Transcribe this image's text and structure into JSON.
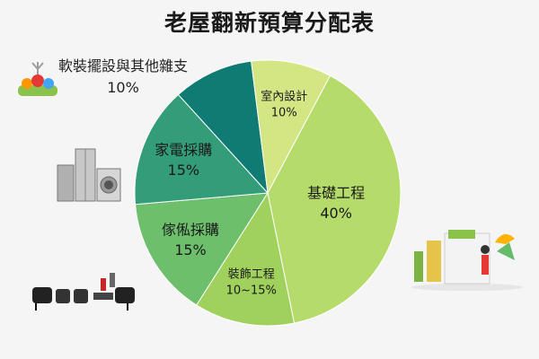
{
  "chart_data": {
    "type": "pie",
    "title": "老屋翻新預算分配表",
    "slices": [
      {
        "label": "基礎工程",
        "value_text": "40%",
        "value": 40,
        "color": "#b5dc6a",
        "text_color": "#1a1a1a"
      },
      {
        "label": "裝飾工程",
        "value_text": "10~15%",
        "value": 12.5,
        "color": "#9fd15c",
        "text_color": "#1a1a1a"
      },
      {
        "label": "傢俬採購",
        "value_text": "15%",
        "value": 15,
        "color": "#6dbf6c",
        "text_color": "#1a1a1a"
      },
      {
        "label": "家電採購",
        "value_text": "15%",
        "value": 15,
        "color": "#339c78",
        "text_color": "#1a1a1a"
      },
      {
        "label": "軟裝擺設與其他雜支",
        "value_text": "10%",
        "value": 10,
        "color": "#0f7b72",
        "text_color": "#1a1a1a"
      },
      {
        "label": "室內設計",
        "value_text": "10%",
        "value": 10,
        "color": "#d4e684",
        "text_color": "#1a1a1a"
      }
    ]
  },
  "decorations": [
    {
      "name": "soft-furnishing-illustration"
    },
    {
      "name": "appliances-illustration"
    },
    {
      "name": "furniture-illustration"
    },
    {
      "name": "decorating-illustration"
    }
  ]
}
